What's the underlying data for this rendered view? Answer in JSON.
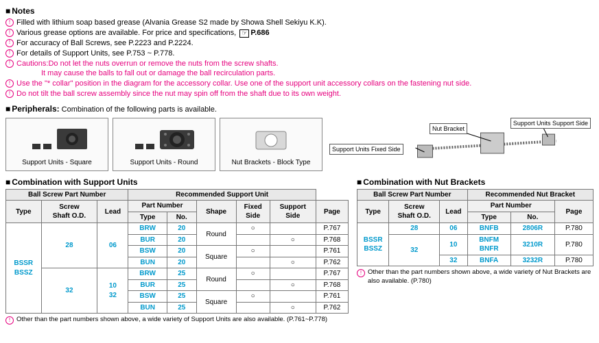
{
  "notes": {
    "header": "Notes",
    "items": [
      "Filled with lithium soap based grease (Alvania Grease S2 made by Showa Shell Sekiyu K.K).",
      "Various grease options are available. For price and specifications, ",
      "For accuracy of Ball Screws, see P.2223 and P.2224.",
      "For details of Support Units, see P.753 ~ P.778."
    ],
    "grease_page": "P.686",
    "caution_label": "Cautions:",
    "caution1": "Do not let the nuts overrun or remove the nuts from the screw shafts.",
    "caution1b": "It may cause the balls to fall out or damage the ball recirculation parts.",
    "caution2": "Use the \"* collar\" position in the diagram for the accessory collar. Use one of the support unit accessory collars on the fastening nut side.",
    "caution3": "Do not tilt the ball screw assembly since the nut may spin off from the shaft due to its own weight."
  },
  "peripherals": {
    "header": "Peripherals:",
    "desc": " Combination of the following parts is available.",
    "boxes": [
      "Support Units - Square",
      "Support Units - Round",
      "Nut Brackets - Block Type"
    ],
    "diag": {
      "fixed": "Support Units Fixed Side",
      "bracket": "Nut Bracket",
      "support": "Support Units Support Side"
    }
  },
  "support_units": {
    "header": "Combination with Support Units",
    "cols": {
      "bspn": "Ball Screw Part Number",
      "rsu": "Recommended Support Unit",
      "type": "Type",
      "od": "Screw\nShaft O.D.",
      "lead": "Lead",
      "pn": "Part Number",
      "shape": "Shape",
      "fixed": "Fixed\nSide",
      "supp": "Support\nSide",
      "page": "Page",
      "no": "No."
    },
    "type_val": "BSSR\nBSSZ",
    "rows": [
      {
        "od": "28",
        "lead": "06",
        "ptype": "BRW",
        "no": "20",
        "shape": "Round",
        "fixed": "○",
        "supp": "",
        "page": "P.767"
      },
      {
        "od": "",
        "lead": "",
        "ptype": "BUR",
        "no": "20",
        "shape": "",
        "fixed": "",
        "supp": "○",
        "page": "P.768"
      },
      {
        "od": "",
        "lead": "",
        "ptype": "BSW",
        "no": "20",
        "shape": "Square",
        "fixed": "○",
        "supp": "",
        "page": "P.761"
      },
      {
        "od": "",
        "lead": "",
        "ptype": "BUN",
        "no": "20",
        "shape": "",
        "fixed": "",
        "supp": "○",
        "page": "P.762"
      },
      {
        "od": "32",
        "lead": "10\n32",
        "ptype": "BRW",
        "no": "25",
        "shape": "Round",
        "fixed": "○",
        "supp": "",
        "page": "P.767"
      },
      {
        "od": "",
        "lead": "",
        "ptype": "BUR",
        "no": "25",
        "shape": "",
        "fixed": "",
        "supp": "○",
        "page": "P.768"
      },
      {
        "od": "",
        "lead": "",
        "ptype": "BSW",
        "no": "25",
        "shape": "Square",
        "fixed": "○",
        "supp": "",
        "page": "P.761"
      },
      {
        "od": "",
        "lead": "",
        "ptype": "BUN",
        "no": "25",
        "shape": "",
        "fixed": "",
        "supp": "○",
        "page": "P.762"
      }
    ],
    "footnote": "Other than the part numbers shown above, a wide variety of Support Units are also available. (P.761~P.778)"
  },
  "nut_brackets": {
    "header": "Combination with Nut Brackets",
    "cols": {
      "bspn": "Ball Screw Part Number",
      "rnb": "Recommended Nut Bracket",
      "type": "Type",
      "od": "Screw\nShaft O.D.",
      "lead": "Lead",
      "pn": "Part Number",
      "page": "Page",
      "no": "No."
    },
    "type_val": "BSSR\nBSSZ",
    "rows": [
      {
        "od": "28",
        "lead": "06",
        "ptype": "BNFB",
        "no": "2806R",
        "page": "P.780"
      },
      {
        "od": "32",
        "lead": "10",
        "ptype": "BNFM\nBNFR",
        "no": "3210R",
        "page": "P.780"
      },
      {
        "od": "",
        "lead": "32",
        "ptype": "BNFA",
        "no": "3232R",
        "page": "P.780"
      }
    ],
    "footnote": "Other than the part numbers shown above, a wide variety of Nut Brackets are also available. (P.780)"
  }
}
